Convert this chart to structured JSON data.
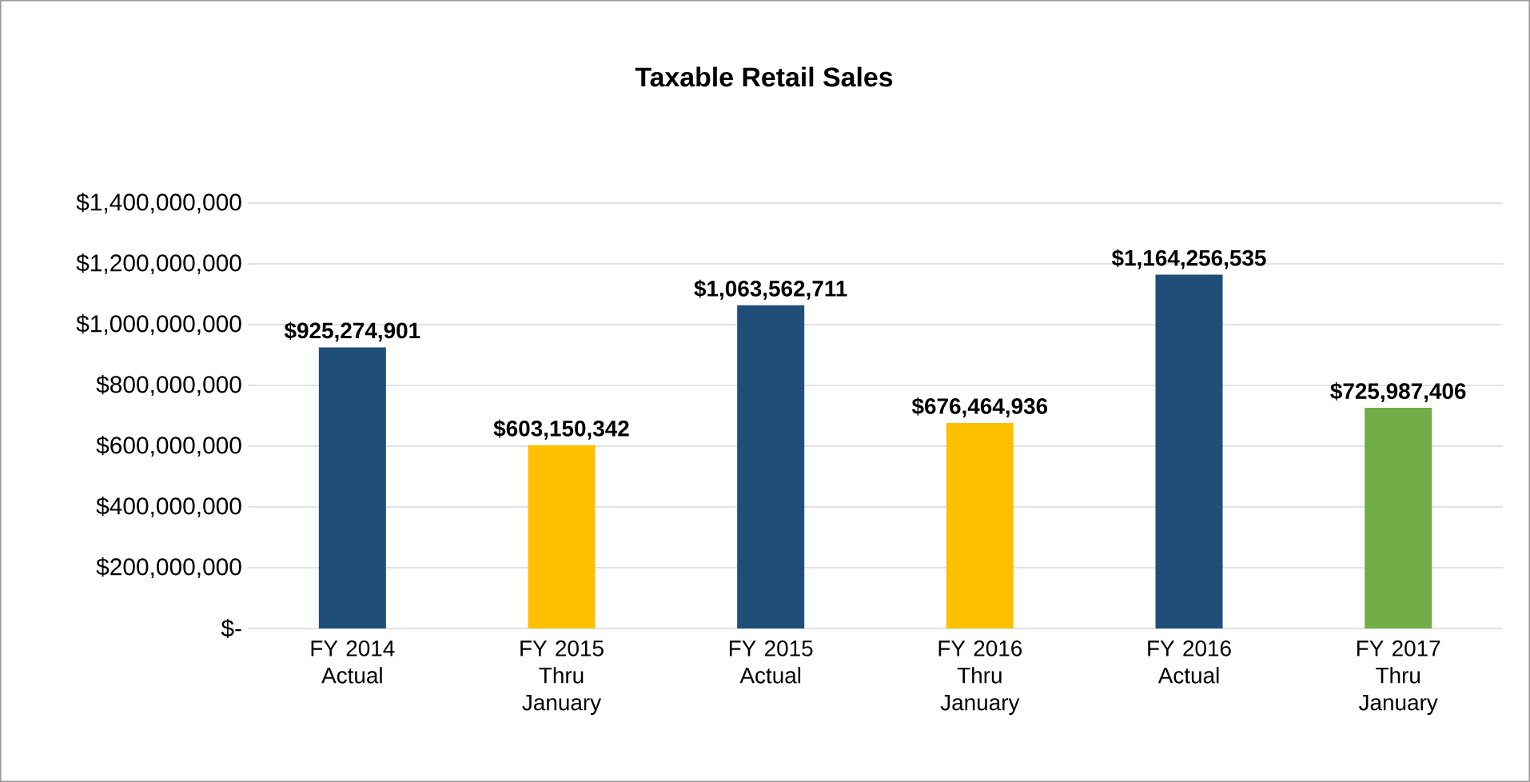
{
  "chart_data": {
    "type": "bar",
    "title": "Taxable Retail Sales",
    "categories": [
      "FY 2014 Actual",
      "FY 2015 Thru January",
      "FY 2015 Actual",
      "FY 2016 Thru January",
      "FY 2016 Actual",
      "FY 2017 Thru January"
    ],
    "values": [
      925274901,
      603150342,
      1063562711,
      676464936,
      1164256535,
      725987406
    ],
    "colors": [
      "#1f4e79",
      "#ffc000",
      "#1f4e79",
      "#ffc000",
      "#1f4e79",
      "#70ad47"
    ],
    "value_labels": [
      "$925,274,901",
      "$603,150,342",
      "$1,063,562,711",
      "$676,464,936",
      "$1,164,256,535",
      "$725,987,406"
    ],
    "ylim": [
      0,
      1400000000
    ],
    "yticks": [
      {
        "value": 0,
        "label": "$-"
      },
      {
        "value": 200000000,
        "label": "$200,000,000"
      },
      {
        "value": 400000000,
        "label": "$400,000,000"
      },
      {
        "value": 600000000,
        "label": "$600,000,000"
      },
      {
        "value": 800000000,
        "label": "$800,000,000"
      },
      {
        "value": 1000000000,
        "label": "$1,000,000,000"
      },
      {
        "value": 1200000000,
        "label": "$1,200,000,000"
      },
      {
        "value": 1400000000,
        "label": "$1,400,000,000"
      }
    ],
    "grid": "y"
  }
}
